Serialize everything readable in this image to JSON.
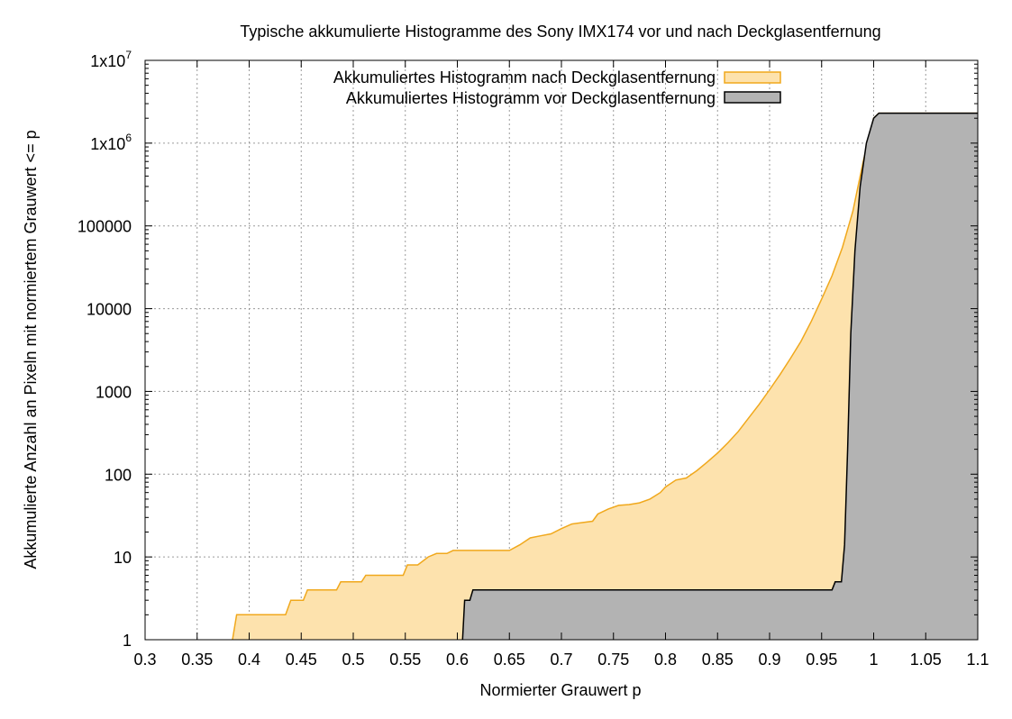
{
  "chart_data": {
    "type": "area",
    "title": "Typische akkumulierte Histogramme des Sony IMX174 vor und nach Deckglasentfernung",
    "xlabel": "Normierter Grauwert p",
    "ylabel": "Akkumulierte Anzahl an Pixeln mit normiertem Grauwert <= p",
    "xlim": [
      0.3,
      1.1
    ],
    "ylim": [
      1,
      10000000
    ],
    "y_scale": "log",
    "grid": true,
    "legend_position": "top-right",
    "x_ticks": [
      {
        "value": 0.3,
        "label": "0.3"
      },
      {
        "value": 0.35,
        "label": "0.35"
      },
      {
        "value": 0.4,
        "label": "0.4"
      },
      {
        "value": 0.45,
        "label": "0.45"
      },
      {
        "value": 0.5,
        "label": "0.5"
      },
      {
        "value": 0.55,
        "label": "0.55"
      },
      {
        "value": 0.6,
        "label": "0.6"
      },
      {
        "value": 0.65,
        "label": "0.65"
      },
      {
        "value": 0.7,
        "label": "0.7"
      },
      {
        "value": 0.75,
        "label": "0.75"
      },
      {
        "value": 0.8,
        "label": "0.8"
      },
      {
        "value": 0.85,
        "label": "0.85"
      },
      {
        "value": 0.9,
        "label": "0.9"
      },
      {
        "value": 0.95,
        "label": "0.95"
      },
      {
        "value": 1.0,
        "label": "1"
      },
      {
        "value": 1.05,
        "label": "1.05"
      },
      {
        "value": 1.1,
        "label": "1.1"
      }
    ],
    "y_ticks": [
      {
        "value": 1,
        "label": "1"
      },
      {
        "value": 10,
        "label": "10"
      },
      {
        "value": 100,
        "label": "100"
      },
      {
        "value": 1000,
        "label": "1000"
      },
      {
        "value": 10000,
        "label": "10000"
      },
      {
        "value": 100000,
        "label": "100000"
      },
      {
        "value": 1000000,
        "label": "1x10",
        "sup": "6"
      },
      {
        "value": 10000000,
        "label": "1x10",
        "sup": "7"
      }
    ],
    "series": [
      {
        "name": "Akkumuliertes Histogramm nach Deckglasentfernung",
        "fill": "#fde2ad",
        "stroke": "#f0a81c",
        "points": [
          [
            0.384,
            1
          ],
          [
            0.388,
            2
          ],
          [
            0.435,
            2
          ],
          [
            0.44,
            3
          ],
          [
            0.452,
            3
          ],
          [
            0.456,
            4
          ],
          [
            0.484,
            4
          ],
          [
            0.488,
            5
          ],
          [
            0.508,
            5
          ],
          [
            0.512,
            6
          ],
          [
            0.548,
            6
          ],
          [
            0.552,
            8
          ],
          [
            0.562,
            8
          ],
          [
            0.572,
            10
          ],
          [
            0.58,
            11
          ],
          [
            0.59,
            11
          ],
          [
            0.596,
            12
          ],
          [
            0.65,
            12
          ],
          [
            0.66,
            14
          ],
          [
            0.67,
            17
          ],
          [
            0.68,
            18
          ],
          [
            0.69,
            19
          ],
          [
            0.7,
            22
          ],
          [
            0.71,
            25
          ],
          [
            0.72,
            26
          ],
          [
            0.73,
            27
          ],
          [
            0.735,
            33
          ],
          [
            0.745,
            38
          ],
          [
            0.755,
            42
          ],
          [
            0.765,
            43
          ],
          [
            0.775,
            45
          ],
          [
            0.785,
            50
          ],
          [
            0.795,
            60
          ],
          [
            0.8,
            70
          ],
          [
            0.81,
            85
          ],
          [
            0.82,
            90
          ],
          [
            0.83,
            110
          ],
          [
            0.84,
            140
          ],
          [
            0.85,
            180
          ],
          [
            0.86,
            240
          ],
          [
            0.87,
            330
          ],
          [
            0.88,
            480
          ],
          [
            0.89,
            700
          ],
          [
            0.9,
            1050
          ],
          [
            0.91,
            1600
          ],
          [
            0.92,
            2500
          ],
          [
            0.93,
            4000
          ],
          [
            0.94,
            7000
          ],
          [
            0.95,
            13000
          ],
          [
            0.96,
            25000
          ],
          [
            0.97,
            55000
          ],
          [
            0.98,
            150000
          ],
          [
            0.99,
            600000
          ],
          [
            1.0,
            2000000
          ],
          [
            1.005,
            2300000
          ],
          [
            1.1,
            2300000
          ]
        ]
      },
      {
        "name": "Akkumuliertes Histogramm vor Deckglasentfernung",
        "fill": "#b3b3b3",
        "stroke": "#000000",
        "points": [
          [
            0.605,
            1
          ],
          [
            0.607,
            3
          ],
          [
            0.612,
            3
          ],
          [
            0.615,
            4
          ],
          [
            0.96,
            4
          ],
          [
            0.963,
            5
          ],
          [
            0.969,
            5
          ],
          [
            0.972,
            14
          ],
          [
            0.975,
            200
          ],
          [
            0.978,
            5000
          ],
          [
            0.982,
            50000
          ],
          [
            0.987,
            300000
          ],
          [
            0.993,
            1000000
          ],
          [
            1.0,
            2000000
          ],
          [
            1.005,
            2300000
          ],
          [
            1.1,
            2300000
          ]
        ]
      }
    ]
  }
}
